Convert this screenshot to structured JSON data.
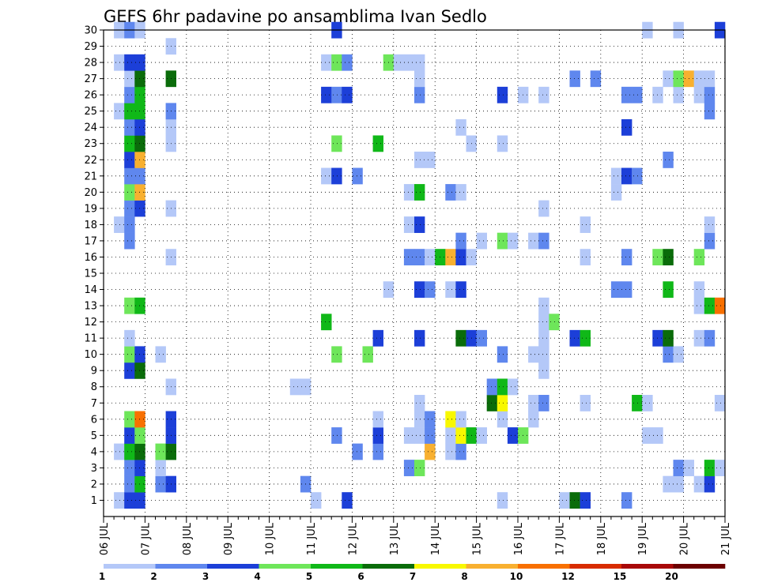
{
  "chart_data": {
    "type": "heatmap",
    "title": "GEFS 6hr padavine po ansamblima Ivan Sedlo",
    "xlabel": "",
    "ylabel": "",
    "x_tick_labels": [
      "06 JUL",
      "07 JUL",
      "08 JUL",
      "09 JUL",
      "10 JUL",
      "11 JUL",
      "12 JUL",
      "13 JUL",
      "14 JUL",
      "15 JUL",
      "16 JUL",
      "17 JUL",
      "18 JUL",
      "19 JUL",
      "20 JUL",
      "21 JUL"
    ],
    "y_tick_labels": [
      "1",
      "2",
      "3",
      "4",
      "5",
      "6",
      "7",
      "8",
      "9",
      "10",
      "11",
      "12",
      "13",
      "14",
      "15",
      "16",
      "17",
      "18",
      "19",
      "20",
      "21",
      "22",
      "23",
      "24",
      "25",
      "26",
      "27",
      "28",
      "29",
      "30"
    ],
    "xlim": [
      0,
      60
    ],
    "ylim": [
      0,
      30
    ],
    "x_step_hours": 6,
    "grid": true,
    "colorbar": {
      "labels": [
        "1",
        "2",
        "3",
        "4",
        "5",
        "6",
        "7",
        "8",
        "10",
        "12",
        "15",
        "20"
      ],
      "colors": [
        "#b4c8f8",
        "#5f87ee",
        "#1c3fd8",
        "#6ee65a",
        "#10b818",
        "#0a6c0a",
        "#f8f800",
        "#f8b030",
        "#f87000",
        "#d82c00",
        "#a80808",
        "#6c0000"
      ]
    },
    "cells": [
      {
        "x": 1,
        "y": 0,
        "c": 1
      },
      {
        "x": 2,
        "y": 0,
        "c": 3
      },
      {
        "x": 3,
        "y": 0,
        "c": 3
      },
      {
        "x": 20,
        "y": 0,
        "c": 1
      },
      {
        "x": 23,
        "y": 0,
        "c": 3
      },
      {
        "x": 38,
        "y": 0,
        "c": 1
      },
      {
        "x": 44,
        "y": 0,
        "c": 1
      },
      {
        "x": 45,
        "y": 0,
        "c": 6
      },
      {
        "x": 46,
        "y": 0,
        "c": 3
      },
      {
        "x": 50,
        "y": 0,
        "c": 2
      },
      {
        "x": 2,
        "y": 1,
        "c": 2
      },
      {
        "x": 3,
        "y": 1,
        "c": 5
      },
      {
        "x": 5,
        "y": 1,
        "c": 2
      },
      {
        "x": 6,
        "y": 1,
        "c": 3
      },
      {
        "x": 19,
        "y": 1,
        "c": 2
      },
      {
        "x": 54,
        "y": 1,
        "c": 1
      },
      {
        "x": 55,
        "y": 1,
        "c": 1
      },
      {
        "x": 57,
        "y": 1,
        "c": 1
      },
      {
        "x": 58,
        "y": 1,
        "c": 3
      },
      {
        "x": 2,
        "y": 2,
        "c": 2
      },
      {
        "x": 3,
        "y": 2,
        "c": 3
      },
      {
        "x": 5,
        "y": 2,
        "c": 1
      },
      {
        "x": 29,
        "y": 2,
        "c": 2
      },
      {
        "x": 30,
        "y": 2,
        "c": 4
      },
      {
        "x": 55,
        "y": 2,
        "c": 2
      },
      {
        "x": 56,
        "y": 2,
        "c": 1
      },
      {
        "x": 58,
        "y": 2,
        "c": 5
      },
      {
        "x": 59,
        "y": 2,
        "c": 1
      },
      {
        "x": 1,
        "y": 3,
        "c": 1
      },
      {
        "x": 2,
        "y": 3,
        "c": 5
      },
      {
        "x": 3,
        "y": 3,
        "c": 6
      },
      {
        "x": 5,
        "y": 3,
        "c": 4
      },
      {
        "x": 6,
        "y": 3,
        "c": 6
      },
      {
        "x": 24,
        "y": 3,
        "c": 2
      },
      {
        "x": 26,
        "y": 3,
        "c": 2
      },
      {
        "x": 31,
        "y": 3,
        "c": 8
      },
      {
        "x": 33,
        "y": 3,
        "c": 1
      },
      {
        "x": 34,
        "y": 3,
        "c": 2
      },
      {
        "x": 2,
        "y": 4,
        "c": 3
      },
      {
        "x": 3,
        "y": 4,
        "c": 4
      },
      {
        "x": 6,
        "y": 4,
        "c": 3
      },
      {
        "x": 22,
        "y": 4,
        "c": 2
      },
      {
        "x": 26,
        "y": 4,
        "c": 3
      },
      {
        "x": 29,
        "y": 4,
        "c": 1
      },
      {
        "x": 30,
        "y": 4,
        "c": 1
      },
      {
        "x": 31,
        "y": 4,
        "c": 2
      },
      {
        "x": 33,
        "y": 4,
        "c": 1
      },
      {
        "x": 34,
        "y": 4,
        "c": 7
      },
      {
        "x": 35,
        "y": 4,
        "c": 5
      },
      {
        "x": 36,
        "y": 4,
        "c": 1
      },
      {
        "x": 39,
        "y": 4,
        "c": 3
      },
      {
        "x": 40,
        "y": 4,
        "c": 4
      },
      {
        "x": 52,
        "y": 4,
        "c": 1
      },
      {
        "x": 53,
        "y": 4,
        "c": 1
      },
      {
        "x": 2,
        "y": 5,
        "c": 4
      },
      {
        "x": 3,
        "y": 5,
        "c": 9
      },
      {
        "x": 6,
        "y": 5,
        "c": 3
      },
      {
        "x": 26,
        "y": 5,
        "c": 1
      },
      {
        "x": 30,
        "y": 5,
        "c": 1
      },
      {
        "x": 31,
        "y": 5,
        "c": 2
      },
      {
        "x": 33,
        "y": 5,
        "c": 7
      },
      {
        "x": 34,
        "y": 5,
        "c": 1
      },
      {
        "x": 38,
        "y": 5,
        "c": 1
      },
      {
        "x": 41,
        "y": 5,
        "c": 1
      },
      {
        "x": 30,
        "y": 6,
        "c": 1
      },
      {
        "x": 37,
        "y": 6,
        "c": 6
      },
      {
        "x": 38,
        "y": 6,
        "c": 7
      },
      {
        "x": 41,
        "y": 6,
        "c": 1
      },
      {
        "x": 42,
        "y": 6,
        "c": 2
      },
      {
        "x": 46,
        "y": 6,
        "c": 1
      },
      {
        "x": 51,
        "y": 6,
        "c": 5
      },
      {
        "x": 52,
        "y": 6,
        "c": 1
      },
      {
        "x": 59,
        "y": 6,
        "c": 1
      },
      {
        "x": 6,
        "y": 7,
        "c": 1
      },
      {
        "x": 18,
        "y": 7,
        "c": 1
      },
      {
        "x": 19,
        "y": 7,
        "c": 1
      },
      {
        "x": 37,
        "y": 7,
        "c": 2
      },
      {
        "x": 38,
        "y": 7,
        "c": 5
      },
      {
        "x": 39,
        "y": 7,
        "c": 1
      },
      {
        "x": 2,
        "y": 8,
        "c": 3
      },
      {
        "x": 3,
        "y": 8,
        "c": 6
      },
      {
        "x": 42,
        "y": 8,
        "c": 1
      },
      {
        "x": 2,
        "y": 9,
        "c": 4
      },
      {
        "x": 3,
        "y": 9,
        "c": 3
      },
      {
        "x": 5,
        "y": 9,
        "c": 1
      },
      {
        "x": 22,
        "y": 9,
        "c": 4
      },
      {
        "x": 25,
        "y": 9,
        "c": 4
      },
      {
        "x": 38,
        "y": 9,
        "c": 2
      },
      {
        "x": 41,
        "y": 9,
        "c": 1
      },
      {
        "x": 42,
        "y": 9,
        "c": 1
      },
      {
        "x": 54,
        "y": 9,
        "c": 2
      },
      {
        "x": 55,
        "y": 9,
        "c": 1
      },
      {
        "x": 2,
        "y": 10,
        "c": 1
      },
      {
        "x": 26,
        "y": 10,
        "c": 3
      },
      {
        "x": 30,
        "y": 10,
        "c": 3
      },
      {
        "x": 34,
        "y": 10,
        "c": 6
      },
      {
        "x": 35,
        "y": 10,
        "c": 3
      },
      {
        "x": 36,
        "y": 10,
        "c": 2
      },
      {
        "x": 42,
        "y": 10,
        "c": 1
      },
      {
        "x": 45,
        "y": 10,
        "c": 3
      },
      {
        "x": 46,
        "y": 10,
        "c": 5
      },
      {
        "x": 53,
        "y": 10,
        "c": 3
      },
      {
        "x": 54,
        "y": 10,
        "c": 6
      },
      {
        "x": 57,
        "y": 10,
        "c": 1
      },
      {
        "x": 58,
        "y": 10,
        "c": 2
      },
      {
        "x": 21,
        "y": 11,
        "c": 5
      },
      {
        "x": 42,
        "y": 11,
        "c": 1
      },
      {
        "x": 43,
        "y": 11,
        "c": 4
      },
      {
        "x": 2,
        "y": 12,
        "c": 4
      },
      {
        "x": 3,
        "y": 12,
        "c": 5
      },
      {
        "x": 42,
        "y": 12,
        "c": 1
      },
      {
        "x": 57,
        "y": 12,
        "c": 1
      },
      {
        "x": 58,
        "y": 12,
        "c": 5
      },
      {
        "x": 59,
        "y": 12,
        "c": 9
      },
      {
        "x": 27,
        "y": 13,
        "c": 1
      },
      {
        "x": 30,
        "y": 13,
        "c": 3
      },
      {
        "x": 31,
        "y": 13,
        "c": 2
      },
      {
        "x": 33,
        "y": 13,
        "c": 1
      },
      {
        "x": 34,
        "y": 13,
        "c": 3
      },
      {
        "x": 49,
        "y": 13,
        "c": 2
      },
      {
        "x": 50,
        "y": 13,
        "c": 2
      },
      {
        "x": 54,
        "y": 13,
        "c": 5
      },
      {
        "x": 57,
        "y": 13,
        "c": 1
      },
      {
        "x": 6,
        "y": 15,
        "c": 1
      },
      {
        "x": 29,
        "y": 15,
        "c": 2
      },
      {
        "x": 30,
        "y": 15,
        "c": 2
      },
      {
        "x": 31,
        "y": 15,
        "c": 1
      },
      {
        "x": 32,
        "y": 15,
        "c": 5
      },
      {
        "x": 33,
        "y": 15,
        "c": 8
      },
      {
        "x": 34,
        "y": 15,
        "c": 3
      },
      {
        "x": 35,
        "y": 15,
        "c": 1
      },
      {
        "x": 46,
        "y": 15,
        "c": 1
      },
      {
        "x": 50,
        "y": 15,
        "c": 2
      },
      {
        "x": 53,
        "y": 15,
        "c": 4
      },
      {
        "x": 54,
        "y": 15,
        "c": 6
      },
      {
        "x": 57,
        "y": 15,
        "c": 4
      },
      {
        "x": 2,
        "y": 16,
        "c": 2
      },
      {
        "x": 34,
        "y": 16,
        "c": 2
      },
      {
        "x": 36,
        "y": 16,
        "c": 1
      },
      {
        "x": 38,
        "y": 16,
        "c": 4
      },
      {
        "x": 39,
        "y": 16,
        "c": 1
      },
      {
        "x": 41,
        "y": 16,
        "c": 1
      },
      {
        "x": 42,
        "y": 16,
        "c": 2
      },
      {
        "x": 58,
        "y": 16,
        "c": 2
      },
      {
        "x": 1,
        "y": 17,
        "c": 1
      },
      {
        "x": 2,
        "y": 17,
        "c": 2
      },
      {
        "x": 29,
        "y": 17,
        "c": 1
      },
      {
        "x": 30,
        "y": 17,
        "c": 3
      },
      {
        "x": 46,
        "y": 17,
        "c": 1
      },
      {
        "x": 58,
        "y": 17,
        "c": 1
      },
      {
        "x": 2,
        "y": 18,
        "c": 2
      },
      {
        "x": 3,
        "y": 18,
        "c": 3
      },
      {
        "x": 6,
        "y": 18,
        "c": 1
      },
      {
        "x": 42,
        "y": 18,
        "c": 1
      },
      {
        "x": 2,
        "y": 19,
        "c": 4
      },
      {
        "x": 3,
        "y": 19,
        "c": 8
      },
      {
        "x": 29,
        "y": 19,
        "c": 1
      },
      {
        "x": 30,
        "y": 19,
        "c": 5
      },
      {
        "x": 33,
        "y": 19,
        "c": 2
      },
      {
        "x": 34,
        "y": 19,
        "c": 1
      },
      {
        "x": 49,
        "y": 19,
        "c": 1
      },
      {
        "x": 2,
        "y": 20,
        "c": 2
      },
      {
        "x": 3,
        "y": 20,
        "c": 2
      },
      {
        "x": 21,
        "y": 20,
        "c": 1
      },
      {
        "x": 22,
        "y": 20,
        "c": 3
      },
      {
        "x": 24,
        "y": 20,
        "c": 2
      },
      {
        "x": 49,
        "y": 20,
        "c": 1
      },
      {
        "x": 50,
        "y": 20,
        "c": 3
      },
      {
        "x": 51,
        "y": 20,
        "c": 2
      },
      {
        "x": 2,
        "y": 21,
        "c": 3
      },
      {
        "x": 3,
        "y": 21,
        "c": 8
      },
      {
        "x": 30,
        "y": 21,
        "c": 1
      },
      {
        "x": 31,
        "y": 21,
        "c": 1
      },
      {
        "x": 54,
        "y": 21,
        "c": 2
      },
      {
        "x": 2,
        "y": 22,
        "c": 5
      },
      {
        "x": 3,
        "y": 22,
        "c": 6
      },
      {
        "x": 6,
        "y": 22,
        "c": 1
      },
      {
        "x": 22,
        "y": 22,
        "c": 4
      },
      {
        "x": 26,
        "y": 22,
        "c": 5
      },
      {
        "x": 35,
        "y": 22,
        "c": 1
      },
      {
        "x": 38,
        "y": 22,
        "c": 1
      },
      {
        "x": 2,
        "y": 23,
        "c": 2
      },
      {
        "x": 3,
        "y": 23,
        "c": 3
      },
      {
        "x": 6,
        "y": 23,
        "c": 1
      },
      {
        "x": 34,
        "y": 23,
        "c": 1
      },
      {
        "x": 50,
        "y": 23,
        "c": 3
      },
      {
        "x": 1,
        "y": 24,
        "c": 1
      },
      {
        "x": 2,
        "y": 24,
        "c": 5
      },
      {
        "x": 3,
        "y": 24,
        "c": 5
      },
      {
        "x": 6,
        "y": 24,
        "c": 2
      },
      {
        "x": 58,
        "y": 24,
        "c": 2
      },
      {
        "x": 2,
        "y": 25,
        "c": 2
      },
      {
        "x": 3,
        "y": 25,
        "c": 5
      },
      {
        "x": 21,
        "y": 25,
        "c": 3
      },
      {
        "x": 22,
        "y": 25,
        "c": 2
      },
      {
        "x": 23,
        "y": 25,
        "c": 3
      },
      {
        "x": 30,
        "y": 25,
        "c": 2
      },
      {
        "x": 38,
        "y": 25,
        "c": 3
      },
      {
        "x": 40,
        "y": 25,
        "c": 1
      },
      {
        "x": 42,
        "y": 25,
        "c": 1
      },
      {
        "x": 50,
        "y": 25,
        "c": 2
      },
      {
        "x": 51,
        "y": 25,
        "c": 2
      },
      {
        "x": 53,
        "y": 25,
        "c": 1
      },
      {
        "x": 55,
        "y": 25,
        "c": 1
      },
      {
        "x": 57,
        "y": 25,
        "c": 1
      },
      {
        "x": 58,
        "y": 25,
        "c": 2
      },
      {
        "x": 2,
        "y": 26,
        "c": 1
      },
      {
        "x": 3,
        "y": 26,
        "c": 6
      },
      {
        "x": 6,
        "y": 26,
        "c": 6
      },
      {
        "x": 30,
        "y": 26,
        "c": 1
      },
      {
        "x": 45,
        "y": 26,
        "c": 2
      },
      {
        "x": 47,
        "y": 26,
        "c": 2
      },
      {
        "x": 54,
        "y": 26,
        "c": 1
      },
      {
        "x": 55,
        "y": 26,
        "c": 4
      },
      {
        "x": 56,
        "y": 26,
        "c": 8
      },
      {
        "x": 57,
        "y": 26,
        "c": 1
      },
      {
        "x": 58,
        "y": 26,
        "c": 1
      },
      {
        "x": 1,
        "y": 27,
        "c": 1
      },
      {
        "x": 2,
        "y": 27,
        "c": 3
      },
      {
        "x": 3,
        "y": 27,
        "c": 3
      },
      {
        "x": 21,
        "y": 27,
        "c": 1
      },
      {
        "x": 22,
        "y": 27,
        "c": 4
      },
      {
        "x": 23,
        "y": 27,
        "c": 2
      },
      {
        "x": 27,
        "y": 27,
        "c": 4
      },
      {
        "x": 28,
        "y": 27,
        "c": 1
      },
      {
        "x": 29,
        "y": 27,
        "c": 1
      },
      {
        "x": 30,
        "y": 27,
        "c": 1
      },
      {
        "x": 6,
        "y": 28,
        "c": 1
      },
      {
        "x": 1,
        "y": 29,
        "c": 1
      },
      {
        "x": 2,
        "y": 29,
        "c": 2
      },
      {
        "x": 3,
        "y": 29,
        "c": 1
      },
      {
        "x": 22,
        "y": 29,
        "c": 3
      },
      {
        "x": 52,
        "y": 29,
        "c": 1
      },
      {
        "x": 55,
        "y": 29,
        "c": 1
      },
      {
        "x": 59,
        "y": 29,
        "c": 3
      }
    ]
  }
}
